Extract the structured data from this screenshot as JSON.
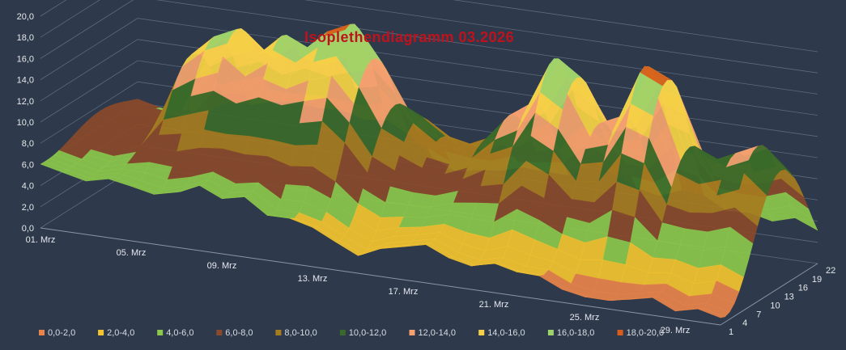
{
  "chart_data": {
    "type": "surface",
    "title": "Isoplethendiagramm 03.2026",
    "title_color": "#c0121c",
    "background_color": "#2e3a4b",
    "grid": true,
    "legend_placement": "bottom",
    "z_axis": {
      "ticks": [
        "0,0",
        "2,0",
        "4,0",
        "6,0",
        "8,0",
        "10,0",
        "12,0",
        "14,0",
        "16,0",
        "18,0",
        "20,0"
      ],
      "range": [
        0,
        20
      ]
    },
    "x_axis": {
      "ticks": [
        "01. Mrz",
        "05. Mrz",
        "09. Mrz",
        "13. Mrz",
        "17. Mrz",
        "21. Mrz",
        "25. Mrz",
        "29. Mrz"
      ],
      "days": [
        1,
        31
      ]
    },
    "y_axis": {
      "ticks": [
        "1",
        "4",
        "7",
        "10",
        "13",
        "16",
        "19",
        "22"
      ],
      "range": [
        1,
        22
      ]
    },
    "legend": [
      {
        "label": "0,0-2,0",
        "color": "#e8844a"
      },
      {
        "label": "2,0-4,0",
        "color": "#f4c430"
      },
      {
        "label": "4,0-6,0",
        "color": "#8cc84b"
      },
      {
        "label": "6,0-8,0",
        "color": "#8a4a2a"
      },
      {
        "label": "8,0-10,0",
        "color": "#a67c1f"
      },
      {
        "label": "10,0-12,0",
        "color": "#3a6a2a"
      },
      {
        "label": "12,0-14,0",
        "color": "#f4a070"
      },
      {
        "label": "14,0-16,0",
        "color": "#f6d048"
      },
      {
        "label": "16,0-18,0",
        "color": "#9ed36a"
      },
      {
        "label": "18,0-20,0",
        "color": "#d85c1a"
      }
    ],
    "daily_profile": [
      {
        "day": 1,
        "min": 6.0,
        "max": 7.5
      },
      {
        "day": 2,
        "min": 5.5,
        "max": 7.0
      },
      {
        "day": 3,
        "min": 5.0,
        "max": 7.0
      },
      {
        "day": 4,
        "min": 5.5,
        "max": 8.0
      },
      {
        "day": 5,
        "min": 5.0,
        "max": 14.0
      },
      {
        "day": 6,
        "min": 4.5,
        "max": 16.0
      },
      {
        "day": 7,
        "min": 5.0,
        "max": 17.0
      },
      {
        "day": 8,
        "min": 6.0,
        "max": 15.0
      },
      {
        "day": 9,
        "min": 5.0,
        "max": 17.0
      },
      {
        "day": 10,
        "min": 5.5,
        "max": 16.0
      },
      {
        "day": 11,
        "min": 4.0,
        "max": 18.0
      },
      {
        "day": 12,
        "min": 4.0,
        "max": 19.0
      },
      {
        "day": 13,
        "min": 3.5,
        "max": 16.0
      },
      {
        "day": 14,
        "min": 2.5,
        "max": 12.0
      },
      {
        "day": 15,
        "min": 1.5,
        "max": 11.0
      },
      {
        "day": 16,
        "min": 2.5,
        "max": 9.5
      },
      {
        "day": 17,
        "min": 3.0,
        "max": 9.0
      },
      {
        "day": 18,
        "min": 3.5,
        "max": 10.0
      },
      {
        "day": 19,
        "min": 2.5,
        "max": 12.5
      },
      {
        "day": 20,
        "min": 2.0,
        "max": 14.0
      },
      {
        "day": 21,
        "min": 2.5,
        "max": 18.5
      },
      {
        "day": 22,
        "min": 2.0,
        "max": 17.0
      },
      {
        "day": 23,
        "min": 2.0,
        "max": 13.0
      },
      {
        "day": 24,
        "min": 1.0,
        "max": 14.0
      },
      {
        "day": 25,
        "min": 0.5,
        "max": 19.0
      },
      {
        "day": 26,
        "min": 0.5,
        "max": 18.0
      },
      {
        "day": 27,
        "min": 1.0,
        "max": 12.0
      },
      {
        "day": 28,
        "min": 1.5,
        "max": 11.0
      },
      {
        "day": 29,
        "min": 0.5,
        "max": 12.0
      },
      {
        "day": 30,
        "min": 1.0,
        "max": 13.0
      },
      {
        "day": 31,
        "min": 0.5,
        "max": 11.0
      }
    ]
  }
}
